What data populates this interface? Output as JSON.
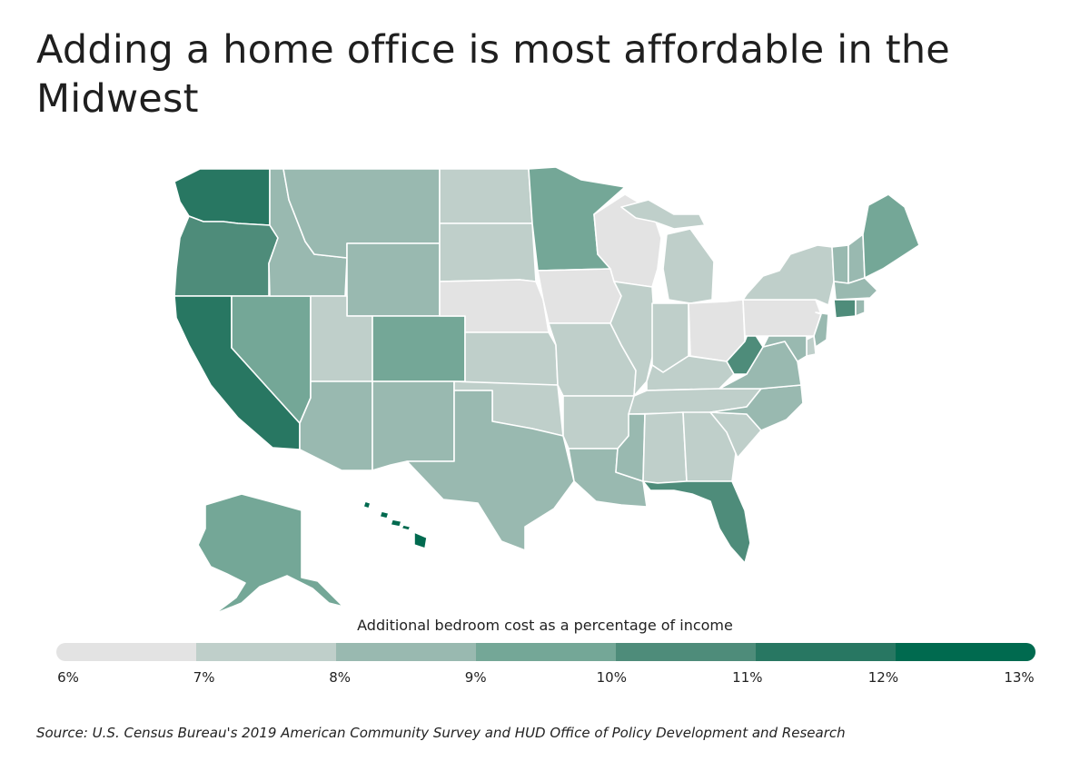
{
  "title": "Adding a home office is most affordable in the Midwest",
  "legend": {
    "title": "Additional bedroom cost as a percentage of income",
    "ticks": [
      "6%",
      "7%",
      "8%",
      "9%",
      "10%",
      "11%",
      "12%",
      "13%"
    ],
    "bins": [
      {
        "range": [
          6,
          7
        ],
        "color": "#e3e3e3"
      },
      {
        "range": [
          7,
          8
        ],
        "color": "#bfcfca"
      },
      {
        "range": [
          8,
          9
        ],
        "color": "#99b9b0"
      },
      {
        "range": [
          9,
          10
        ],
        "color": "#74a797"
      },
      {
        "range": [
          10,
          11
        ],
        "color": "#4e8c7a"
      },
      {
        "range": [
          11,
          12
        ],
        "color": "#287762"
      },
      {
        "range": [
          12,
          13
        ],
        "color": "#006a4f"
      }
    ]
  },
  "source": "Source:  U.S. Census Bureau's 2019 American Community Survey and HUD Office of Policy Development and Research",
  "state_bins": {
    "WA": 5,
    "OR": 4,
    "CA": 5,
    "HI": 6,
    "NV": 3,
    "ID": 2,
    "MT": 2,
    "WY": 2,
    "UT": 1,
    "AZ": 2,
    "CO": 3,
    "NM": 2,
    "ND": 1,
    "SD": 1,
    "NE": 0,
    "KS": 1,
    "OK": 1,
    "TX": 2,
    "MN": 3,
    "IA": 0,
    "MO": 1,
    "AR": 1,
    "LA": 2,
    "WI": 0,
    "IL": 1,
    "MI": 1,
    "IN": 1,
    "OH": 0,
    "KY": 1,
    "TN": 1,
    "MS": 2,
    "AL": 1,
    "GA": 1,
    "FL": 4,
    "SC": 1,
    "NC": 2,
    "VA": 2,
    "WV": 4,
    "PA": 0,
    "NY": 1,
    "ME": 3,
    "VT": 2,
    "NH": 2,
    "MA": 2,
    "CT": 4,
    "RI": 2,
    "NJ": 2,
    "DE": 1,
    "MD": 2,
    "AK": 3
  }
}
